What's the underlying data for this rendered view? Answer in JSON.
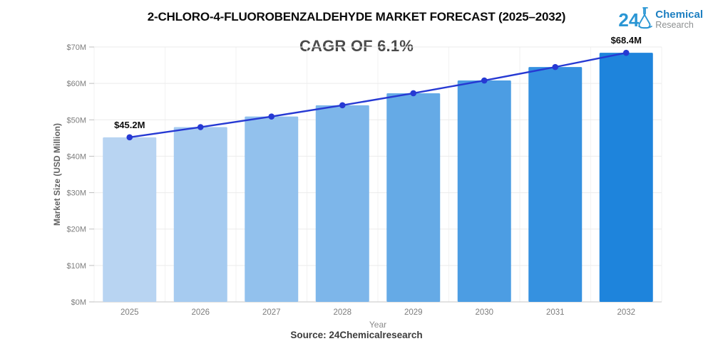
{
  "header": {
    "title": "2-CHLORO-4-FLUOROBENZALDEHYDE MARKET FORECAST (2025–2032)",
    "subtitle": "CAGR OF 6.1%"
  },
  "logo": {
    "number": "24",
    "line1": "Chemical",
    "line2": "Research",
    "icon": "flask-icon",
    "accent_blue": "#2a96d4",
    "text_blue": "#1d7fc1",
    "text_gray": "#8d9091"
  },
  "chart_data": {
    "type": "bar",
    "title": "2-CHLORO-4-FLUOROBENZALDEHYDE MARKET FORECAST (2025–2032)",
    "subtitle": "CAGR OF 6.1%",
    "categories": [
      "2025",
      "2026",
      "2027",
      "2028",
      "2029",
      "2030",
      "2031",
      "2032"
    ],
    "series": [
      {
        "name": "Market Size",
        "type": "bar",
        "values": [
          45.2,
          48.0,
          50.9,
          54.0,
          57.3,
          60.8,
          64.5,
          68.4
        ],
        "bar_colors": [
          "#b8d4f2",
          "#a6cbf0",
          "#92c1ed",
          "#7db6ea",
          "#65aae6",
          "#4c9de3",
          "#3591e0",
          "#1e84dc"
        ]
      },
      {
        "name": "Trend",
        "type": "line",
        "values": [
          45.2,
          48.0,
          50.9,
          54.0,
          57.3,
          60.8,
          64.5,
          68.4
        ],
        "color": "#2639d3"
      }
    ],
    "xlabel": "Year",
    "ylabel": "Market Size (USD Million)",
    "ylim": [
      0,
      70
    ],
    "ytick_step": 10,
    "ytick_labels": [
      "$0M",
      "$10M",
      "$20M",
      "$30M",
      "$40M",
      "$50M",
      "$60M",
      "$70M"
    ],
    "annotations": [
      {
        "category": "2025",
        "text": "$45.2M"
      },
      {
        "category": "2032",
        "text": "$68.4M"
      }
    ],
    "grid": true,
    "legend_position": "none",
    "colors": {
      "gridline": "#ebebeb",
      "vgridline": "#f2f2f2",
      "axis_line": "#d8d8d8",
      "tick_mark": "#bfbfbf",
      "tick_label": "#7d7d7d",
      "axis_label": "#636363"
    }
  },
  "footer": {
    "source": "Source: 24Chemicalresearch"
  }
}
